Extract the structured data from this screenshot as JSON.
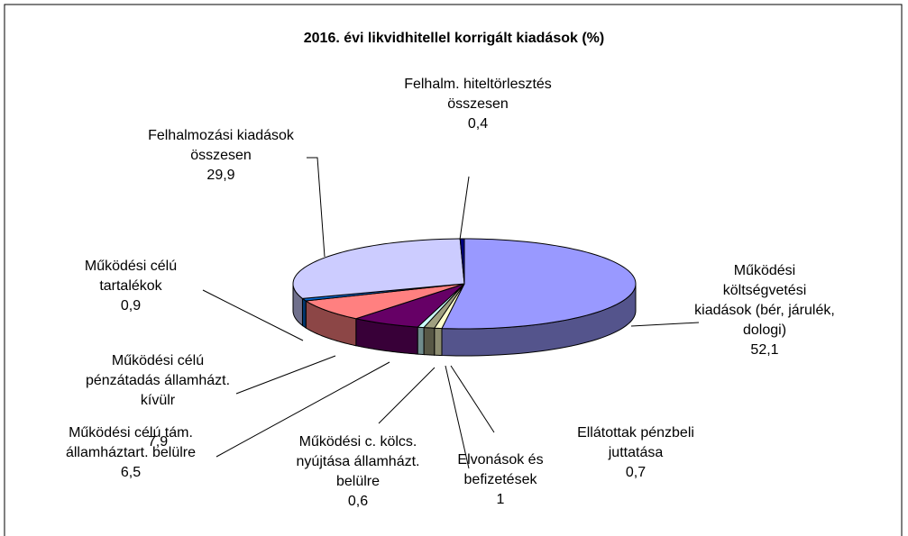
{
  "chart_data": {
    "type": "pie3d",
    "title": "2016. évi likvidhitellel korrigált kiadások (%)",
    "categories": [
      "Működési költségvetési kiadások (bér, járulék, dologi)",
      "Ellátottak pénzbeli juttatása",
      "Elvonások és befizetések",
      "Működési c. kölcs. nyújtása államházt. belülre",
      "Működési célú tám. államháztart. belülre",
      "Működési célú pénzátadás államházt. kívülr",
      "Működési célú tartalékok",
      "Felhalmozási kiadások összesen",
      "Felhalm. hiteltörlesztés összesen"
    ],
    "values": [
      52.1,
      0.7,
      1,
      0.6,
      6.5,
      7.9,
      0.9,
      29.9,
      0.4
    ],
    "value_labels": [
      "52,1",
      "0,7",
      "1",
      "0,6",
      "6,5",
      "7,9",
      "0,9",
      "29,9",
      "0,4"
    ],
    "colors": [
      "#9999ff",
      "#ffffcc",
      "#a0a080",
      "#ccffff",
      "#660066",
      "#ff8080",
      "#0066cc",
      "#ccccff",
      "#000080"
    ]
  }
}
